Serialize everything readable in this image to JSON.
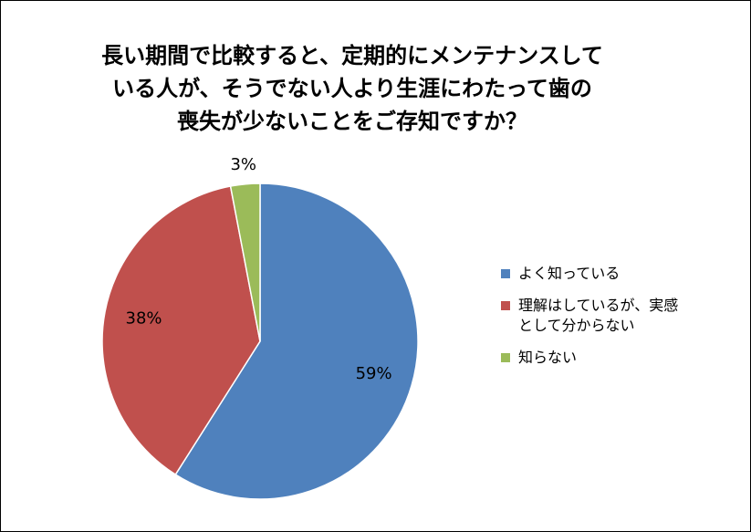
{
  "title_lines": [
    "長い期間で比較すると、定期的にメンテナンスして",
    "いる人が、そうでない人より生涯にわたって歯の",
    "喪失が少ないことをご存知ですか？"
  ],
  "colors": {
    "blue": "#4f81bd",
    "red": "#c0504d",
    "green": "#9bbb59"
  },
  "chart_data": {
    "type": "pie",
    "title": "長い期間で比較すると、定期的にメンテナンスしている人が、そうでない人より生涯にわたって歯の喪失が少ないことをご存知ですか？",
    "categories": [
      "よく知っている",
      "理解はしているが、実感として分からない",
      "知らない"
    ],
    "values": [
      59,
      38,
      3
    ],
    "labels": [
      "59%",
      "38%",
      "3%"
    ],
    "colors": [
      "#4f81bd",
      "#c0504d",
      "#9bbb59"
    ],
    "legend": {
      "position": "right",
      "entries": [
        {
          "lines": [
            "よく知っている"
          ],
          "color": "#4f81bd"
        },
        {
          "lines": [
            "理解はしているが、実感",
            "として分からない"
          ],
          "color": "#c0504d"
        },
        {
          "lines": [
            "知らない"
          ],
          "color": "#9bbb59"
        }
      ]
    }
  }
}
